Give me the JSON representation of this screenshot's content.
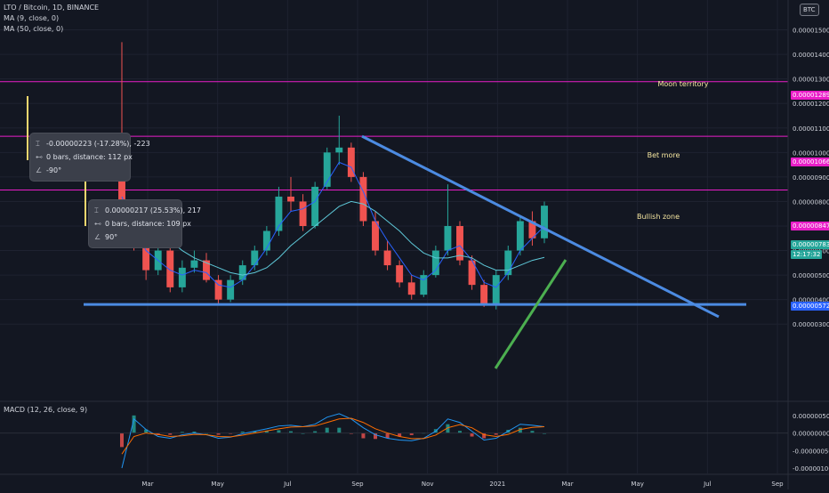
{
  "header": {
    "symbol_line": "LTO / Bitcoin, 1D, BINANCE",
    "ma9": "MA (9, close, 0)",
    "ma50": "MA (50, close, 0)",
    "currency": "BTC"
  },
  "annotations": {
    "moon": "Moon territory",
    "bet": "Bet more",
    "bullish": "Bullish zone"
  },
  "tooltips": {
    "top": {
      "delta": "-0.00000223 (-17.28%), -223",
      "bars": "0 bars, distance: 112 px",
      "angle": "-90°"
    },
    "bottom": {
      "delta": "0.00000217 (25.53%), 217",
      "bars": "0 bars, distance: 109 px",
      "angle": "90°"
    }
  },
  "price_tags": {
    "moon": "0.00001289",
    "bet": "0.00001066",
    "bullish": "0.00000847",
    "last": "0.00000783",
    "timer": "12:17:32",
    "ma": "0.00000572"
  },
  "macd_label": "MACD (12, 26, close, 9)",
  "colors": {
    "background": "#131722",
    "magenta": "#e91ec8",
    "trendline": "#4c8be2",
    "green_line": "#4caf50",
    "up": "#26a69a",
    "down": "#ef5350",
    "ma9": "#2962ff",
    "ma50": "#5ec8d8",
    "macd_line": "#2196f3",
    "signal_line": "#ff6d00",
    "last_tag": "#26a69a",
    "ma_tag": "#2962ff"
  },
  "chart_data": {
    "type": "candlestick",
    "x_tick_labels": [
      "Mar",
      "May",
      "Jul",
      "Sep",
      "Nov",
      "2021",
      "Mar",
      "May",
      "Jul",
      "Sep"
    ],
    "y_tick_labels": [
      "0.00001500",
      "0.00001400",
      "0.00001300",
      "0.00001200",
      "0.00001100",
      "0.00001000",
      "0.00000900",
      "0.00000800",
      "0.00000700",
      "0.00000600",
      "0.00000500",
      "0.00000400",
      "0.00000300"
    ],
    "y_range": [
      2.5e-06,
      1.6e-05
    ],
    "horizontal_levels": [
      1.289e-05,
      1.066e-05,
      8.47e-06
    ],
    "support_level": 3.8e-06,
    "descending_trendline": {
      "from": 1.066e-05,
      "to": 3.3e-06
    },
    "series_price": [
      [
        9e-06,
        1.45e-05,
        7.8e-06,
        7.6e-06
      ],
      [
        7.6e-06,
        8e-06,
        6e-06,
        6.2e-06
      ],
      [
        6.2e-06,
        6.7e-06,
        4.8e-06,
        5.2e-06
      ],
      [
        5.2e-06,
        6.4e-06,
        5e-06,
        6e-06
      ],
      [
        6e-06,
        6.2e-06,
        4.3e-06,
        4.5e-06
      ],
      [
        4.5e-06,
        5.6e-06,
        4.3e-06,
        5.3e-06
      ],
      [
        5.3e-06,
        6e-06,
        5.1e-06,
        5.6e-06
      ],
      [
        5.6e-06,
        5.9e-06,
        4.7e-06,
        4.8e-06
      ],
      [
        4.8e-06,
        5e-06,
        3.8e-06,
        4e-06
      ],
      [
        4e-06,
        5e-06,
        3.9e-06,
        4.8e-06
      ],
      [
        4.8e-06,
        5.6e-06,
        4.6e-06,
        5.4e-06
      ],
      [
        5.4e-06,
        6.2e-06,
        5.2e-06,
        6e-06
      ],
      [
        6e-06,
        7e-06,
        5.8e-06,
        6.8e-06
      ],
      [
        6.8e-06,
        8.6e-06,
        6.6e-06,
        8.2e-06
      ],
      [
        8.2e-06,
        9e-06,
        7.6e-06,
        8e-06
      ],
      [
        8e-06,
        8.3e-06,
        6.8e-06,
        7e-06
      ],
      [
        7e-06,
        8.8e-06,
        6.9e-06,
        8.6e-06
      ],
      [
        8.6e-06,
        1.02e-05,
        8.5e-06,
        1e-05
      ],
      [
        1e-05,
        1.15e-05,
        9.5e-06,
        1.02e-05
      ],
      [
        1.02e-05,
        1.04e-05,
        8.8e-06,
        9e-06
      ],
      [
        9e-06,
        9.2e-06,
        7e-06,
        7.2e-06
      ],
      [
        7.2e-06,
        7.6e-06,
        5.8e-06,
        6e-06
      ],
      [
        6e-06,
        6.4e-06,
        5.2e-06,
        5.4e-06
      ],
      [
        5.4e-06,
        5.6e-06,
        4.5e-06,
        4.7e-06
      ],
      [
        4.7e-06,
        5e-06,
        4e-06,
        4.2e-06
      ],
      [
        4.2e-06,
        5.2e-06,
        4.1e-06,
        5e-06
      ],
      [
        5e-06,
        6.2e-06,
        4.9e-06,
        6e-06
      ],
      [
        6e-06,
        8.7e-06,
        5.8e-06,
        7e-06
      ],
      [
        7e-06,
        7.2e-06,
        5.4e-06,
        5.6e-06
      ],
      [
        5.6e-06,
        5.8e-06,
        4.4e-06,
        4.6e-06
      ],
      [
        4.6e-06,
        4.8e-06,
        3.7e-06,
        3.8e-06
      ],
      [
        3.8e-06,
        5.2e-06,
        3.6e-06,
        5e-06
      ],
      [
        5e-06,
        6.2e-06,
        4.8e-06,
        6e-06
      ],
      [
        6e-06,
        7.4e-06,
        5.8e-06,
        7.2e-06
      ],
      [
        7.2e-06,
        7.6e-06,
        6.2e-06,
        6.5e-06
      ],
      [
        6.5e-06,
        8e-06,
        6.3e-06,
        7.83e-06
      ]
    ],
    "ma9": [
      8.2e-06,
      7e-06,
      6e-06,
      5.6e-06,
      5.2e-06,
      5e-06,
      5.2e-06,
      5.1e-06,
      4.6e-06,
      4.5e-06,
      4.8e-06,
      5.4e-06,
      6.1e-06,
      7e-06,
      7.6e-06,
      7.7e-06,
      8e-06,
      8.8e-06,
      9.6e-06,
      9.4e-06,
      8.4e-06,
      7.2e-06,
      6.4e-06,
      5.7e-06,
      5e-06,
      4.8e-06,
      5.2e-06,
      6e-06,
      6.2e-06,
      5.6e-06,
      4.7e-06,
      4.5e-06,
      5.1e-06,
      6e-06,
      6.5e-06,
      7e-06
    ],
    "ma50": [
      7.8e-06,
      7.6e-06,
      7.2e-06,
      6.8e-06,
      6.4e-06,
      6e-06,
      5.7e-06,
      5.5e-06,
      5.3e-06,
      5.1e-06,
      5e-06,
      5.1e-06,
      5.3e-06,
      5.7e-06,
      6.2e-06,
      6.6e-06,
      7e-06,
      7.4e-06,
      7.8e-06,
      8e-06,
      7.9e-06,
      7.6e-06,
      7.2e-06,
      6.8e-06,
      6.3e-06,
      5.9e-06,
      5.7e-06,
      5.7e-06,
      5.8e-06,
      5.7e-06,
      5.4e-06,
      5.2e-06,
      5.2e-06,
      5.4e-06,
      5.6e-06,
      5.72e-06
    ],
    "macd_tick_labels": [
      "0.00000050",
      "0.00000000",
      "-0.00000050",
      "-0.00000100"
    ],
    "macd_range": [
      -1.1e-06,
      8e-07
    ],
    "macd_line": [
      -1e-06,
      4e-07,
      1e-07,
      -1e-07,
      -1.5e-07,
      -5e-08,
      0.0,
      -5e-08,
      -1.5e-07,
      -1.2e-07,
      -2e-08,
      5e-08,
      1.2e-07,
      2e-07,
      2.2e-07,
      1.8e-07,
      2.5e-07,
      4.5e-07,
      5.5e-07,
      4e-07,
      1.5e-07,
      -5e-08,
      -1.5e-07,
      -2e-07,
      -2.2e-07,
      -1.5e-07,
      5e-08,
      4e-07,
      3e-07,
      5e-08,
      -2e-07,
      -1.5e-07,
      5e-08,
      2.5e-07,
      2.2e-07,
      1.8e-07
    ],
    "signal_line": [
      -6e-07,
      -1e-07,
      0.0,
      -4e-08,
      -1e-07,
      -8e-08,
      -4e-08,
      -5e-08,
      -1e-07,
      -1.1e-07,
      -6e-08,
      0.0,
      6e-08,
      1.2e-07,
      1.7e-07,
      1.8e-07,
      2e-07,
      3e-07,
      4e-07,
      4.2e-07,
      3e-07,
      1.2e-07,
      0.0,
      -1e-07,
      -1.6e-07,
      -1.6e-07,
      -6e-08,
      1.5e-07,
      2.4e-07,
      1.5e-07,
      -5e-08,
      -1e-07,
      -4e-08,
      1e-07,
      1.6e-07,
      1.8e-07
    ]
  }
}
